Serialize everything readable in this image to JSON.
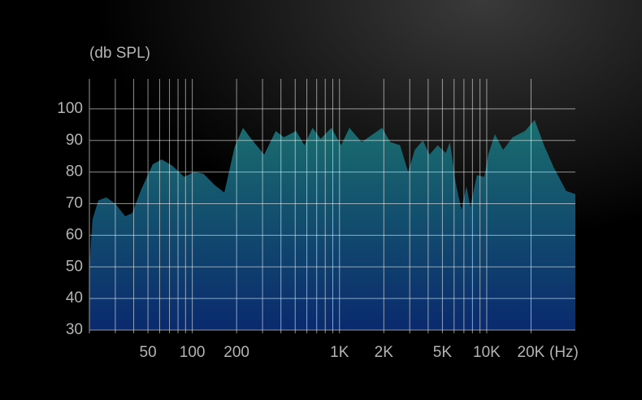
{
  "chart_data": {
    "type": "area",
    "y_label": "(db SPL)",
    "x_unit": "(Hz)",
    "log_x": true,
    "grid": true,
    "xlim": [
      20,
      40000
    ],
    "ylim": [
      30,
      110
    ],
    "yticks": [
      30,
      40,
      50,
      60,
      70,
      80,
      90,
      100
    ],
    "xticks": [
      50,
      100,
      200,
      {
        "value": 1000,
        "label": "1K"
      },
      {
        "value": 2000,
        "label": "2K"
      },
      {
        "value": 5000,
        "label": "5K"
      },
      {
        "value": 10000,
        "label": "10K"
      },
      {
        "value": 20000,
        "label": "20K"
      }
    ],
    "xgrid": [
      30,
      40,
      50,
      60,
      70,
      80,
      90,
      100,
      200,
      300,
      400,
      500,
      600,
      700,
      800,
      900,
      1000,
      2000,
      3000,
      4000,
      5000,
      6000,
      7000,
      8000,
      9000,
      10000,
      20000
    ],
    "colors": [
      "#1a6e6e",
      "#0a2a6e"
    ],
    "x": [
      20,
      21,
      23,
      26,
      30,
      35,
      39,
      45,
      54,
      62,
      73,
      88,
      103,
      119,
      141,
      165,
      194,
      221,
      251,
      308,
      369,
      419,
      507,
      577,
      656,
      745,
      880,
      1026,
      1166,
      1413,
      1946,
      2210,
      2576,
      2929,
      3245,
      3684,
      4082,
      4642,
      5275,
      5623,
      6158,
      6734,
      7280,
      7743,
      8576,
      9629,
      10239,
      11350,
      12915,
      14990,
      18197,
      21170,
      24480,
      28480,
      34640,
      40000
    ],
    "values": [
      50,
      65,
      71,
      72,
      70,
      66,
      67,
      74.5,
      82.5,
      84,
      82,
      78.5,
      80,
      79.5,
      76,
      73.5,
      88,
      94,
      90.5,
      85.5,
      93,
      91,
      93,
      88.5,
      94,
      90.5,
      94,
      88.5,
      94,
      89.5,
      94,
      89.5,
      88.5,
      80,
      87,
      90,
      85.5,
      88.5,
      86,
      89.5,
      76.5,
      68,
      75.5,
      69,
      79,
      78.5,
      85.5,
      92,
      87,
      91,
      93,
      96.5,
      88.5,
      81.5,
      74,
      73
    ]
  }
}
